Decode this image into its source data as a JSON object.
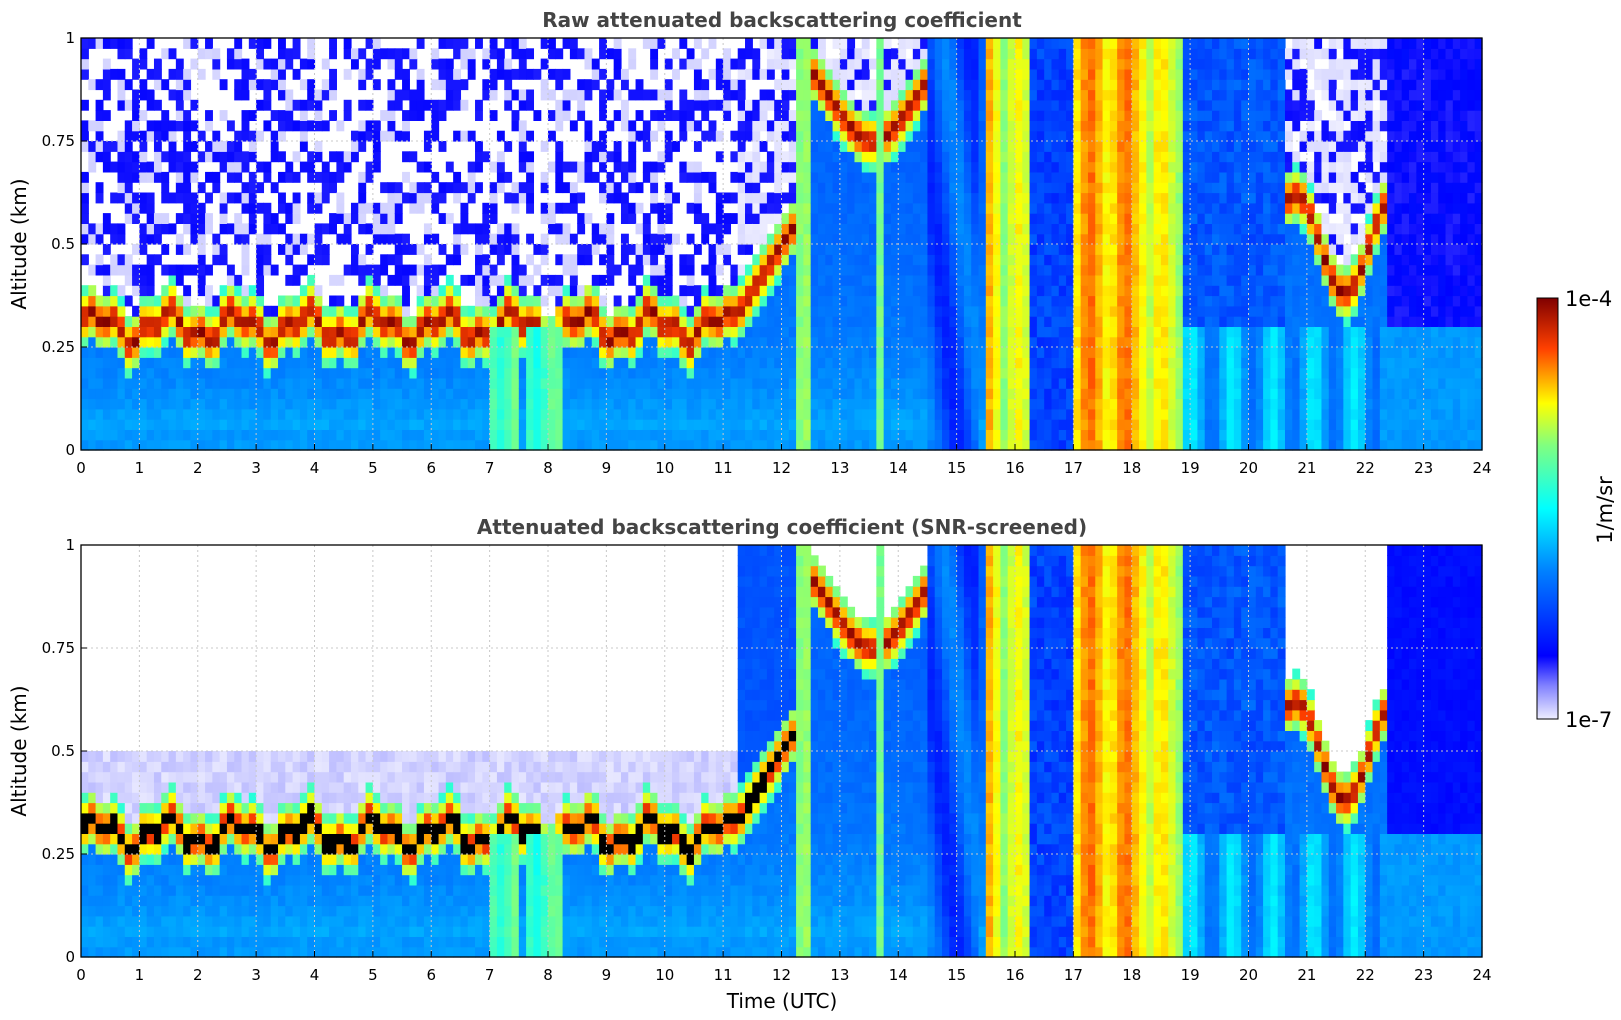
{
  "chart_data": [
    {
      "type": "heatmap",
      "title": "Raw attenuated backscattering coefficient",
      "ylabel": "Altitude (km)",
      "xlabel": "",
      "xlim": [
        0,
        24
      ],
      "ylim": [
        0,
        1
      ],
      "xticks": [
        "0",
        "1",
        "2",
        "3",
        "4",
        "5",
        "6",
        "7",
        "8",
        "9",
        "10",
        "11",
        "12",
        "13",
        "14",
        "15",
        "16",
        "17",
        "18",
        "19",
        "20",
        "21",
        "22",
        "23",
        "24"
      ],
      "yticks": [
        "0",
        "0.25",
        "0.5",
        "0.75",
        "1"
      ],
      "grid": true,
      "screened": false
    },
    {
      "type": "heatmap",
      "title": "Attenuated backscattering coefficient (SNR-screened)",
      "ylabel": "Altitude (km)",
      "xlabel": "Time (UTC)",
      "xlim": [
        0,
        24
      ],
      "ylim": [
        0,
        1
      ],
      "xticks": [
        "0",
        "1",
        "2",
        "3",
        "4",
        "5",
        "6",
        "7",
        "8",
        "9",
        "10",
        "11",
        "12",
        "13",
        "14",
        "15",
        "16",
        "17",
        "18",
        "19",
        "20",
        "21",
        "22",
        "23",
        "24"
      ],
      "yticks": [
        "0",
        "0.25",
        "0.5",
        "0.75",
        "1"
      ],
      "grid": true,
      "screened": true
    }
  ],
  "colorbar": {
    "label": "1/m/sr",
    "max_label": "1e-4",
    "min_label": "1e-7",
    "scale": "log",
    "range": [
      1e-07,
      0.0001
    ]
  }
}
